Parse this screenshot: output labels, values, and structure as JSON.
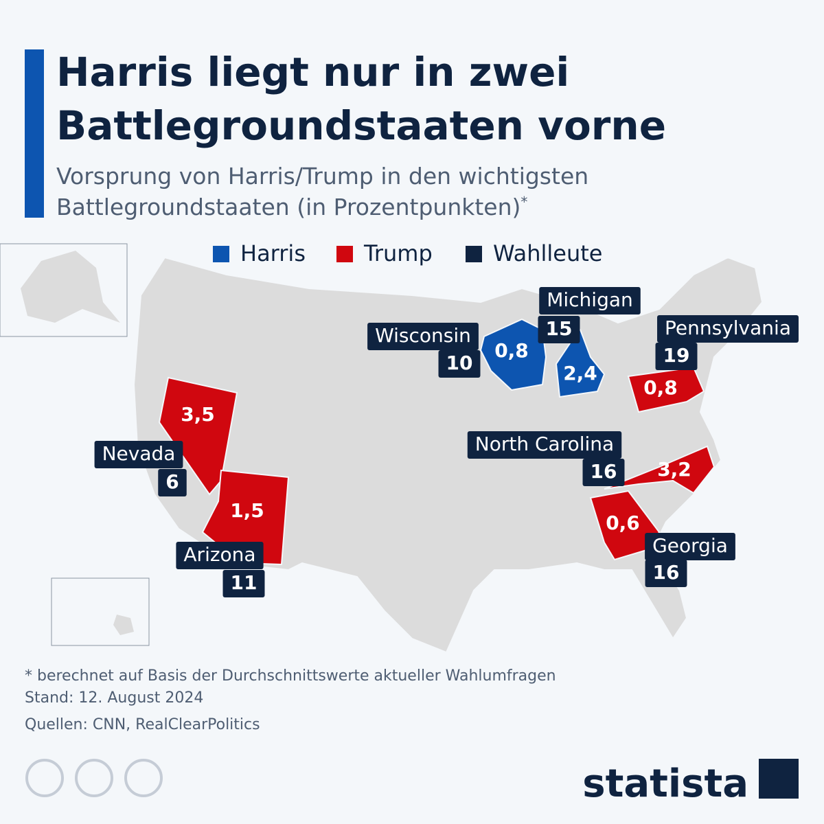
{
  "header": {
    "title": [
      "Harris liegt nur in zwei",
      "Battlegroundstaaten vorne"
    ],
    "subtitle": [
      "Vorsprung von Harris/Trump in den wichtigsten",
      "Battlegroundstaaten (in Prozentpunkten)"
    ],
    "subtitle_mark": "*"
  },
  "legend": [
    {
      "label": "Harris",
      "color": "#0d55b0"
    },
    {
      "label": "Trump",
      "color": "#d0070f"
    },
    {
      "label": "Wahlleute",
      "color": "#0f2340"
    }
  ],
  "states": [
    {
      "name": "Wisconsin",
      "electors": 10,
      "margin": "0,8",
      "color": "#0d55b0"
    },
    {
      "name": "Michigan",
      "electors": 15,
      "margin": "2,4",
      "color": "#0d55b0"
    },
    {
      "name": "Pennsylvania",
      "electors": 19,
      "margin": "0,8",
      "color": "#d0070f"
    },
    {
      "name": "Nevada",
      "electors": 6,
      "margin": "3,5",
      "color": "#d0070f"
    },
    {
      "name": "Arizona",
      "electors": 11,
      "margin": "1,5",
      "color": "#d0070f"
    },
    {
      "name": "North Carolina",
      "electors": 16,
      "margin": "3,2",
      "color": "#d0070f"
    },
    {
      "name": "Georgia",
      "electors": 16,
      "margin": "0,6",
      "color": "#d0070f"
    }
  ],
  "footer": {
    "note": "* berechnet auf Basis der Durchschnittswerte aktueller Wahlumfragen",
    "date": "Stand: 12. August 2024",
    "sources": "Quellen: CNN, RealClearPolitics",
    "brand": "statista"
  }
}
